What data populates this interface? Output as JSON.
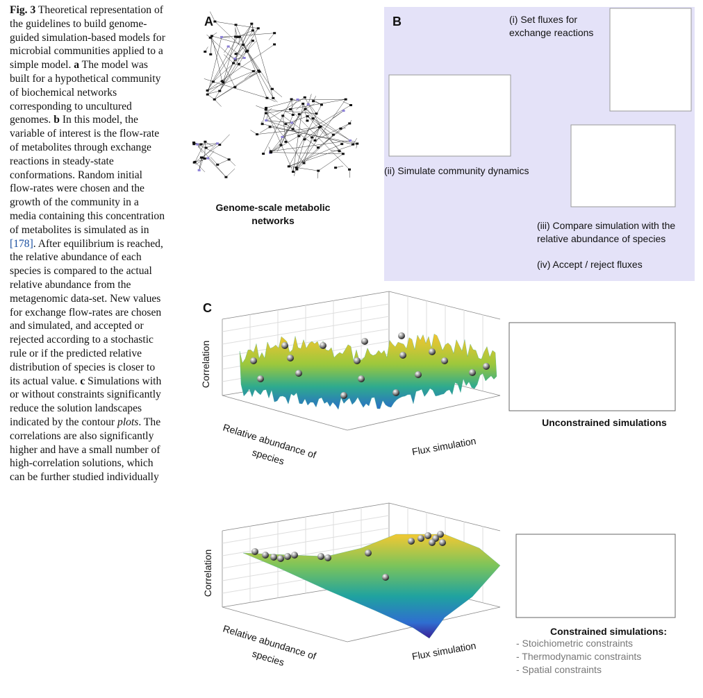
{
  "caption": {
    "label": "Fig. 3",
    "parts": [
      " Theoretical representation of the guidelines to build genome-guided simulation-based models for microbial communities applied to a simple model. ",
      "a",
      " The model was built for a hypothetical community of biochemical networks corresponding to uncultured genomes. ",
      "b",
      " In this model, the variable of interest is the flow-rate of metabolites through exchange reactions in steady-state conformations. Random initial flow-rates were chosen and the growth of the community in a media containing this concentration of metabolites is simulated as in ",
      "[178]",
      ". After equilibrium is reached, the relative abundance of each species is compared to the actual relative abundance from the metagenomic data-set. New values for exchange flow-rates are chosen and simulated, and accepted or rejected according to a stochastic rule or if the predicted relative distribution of species is closer to its actual value. ",
      "c",
      " Simulations with or without constraints significantly reduce the solution landscapes indicated by the contour ",
      "plots",
      ". The correlations are also significantly higher and have a small number of high-correlation solutions, which can be further studied individually"
    ]
  },
  "panel_a": {
    "letter": "A",
    "title": [
      "Genome-scale metabolic",
      "networks"
    ]
  },
  "panel_b": {
    "letter": "B",
    "step_1": [
      "(i) Set fluxes for",
      "exchange reactions"
    ],
    "step_2": "(ii) Simulate community dynamics",
    "step_3": [
      "(iii) Compare simulation with the",
      "relative abundance of species"
    ],
    "step_4": "(iv) Accept / reject fluxes"
  },
  "panel_c": {
    "letter": "C",
    "unconstrained": {
      "z_label": "Correlation",
      "y_label": [
        "Relative abundance of",
        "species"
      ],
      "x_label": "Flux simulation",
      "title": "Unconstrained simulations"
    },
    "constrained": {
      "z_label": "Correlation",
      "y_label": [
        "Relative abundance of",
        "species"
      ],
      "x_label": "Flux simulation",
      "title": "Constrained simulations:",
      "constraints": [
        "- Stoichiometric constraints",
        "- Thermodynamic constraints",
        "- Spatial constraints"
      ]
    }
  }
}
